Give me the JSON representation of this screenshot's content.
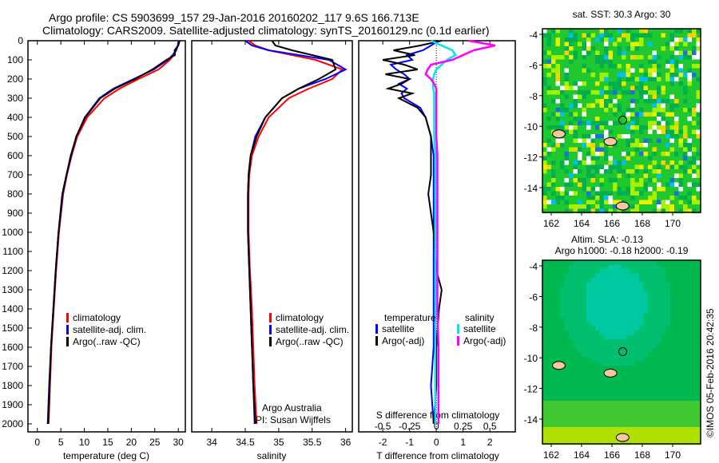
{
  "header": {
    "line1": "Argo profile: CS 5903699_157 29-Jan-2016 20160202_117 9.6S 166.713E",
    "line2": "Climatology: CARS2009. Satellite-adjusted climatology: synTS_20160129.nc (0.1d earlier)"
  },
  "colors": {
    "climatology": "#ff0000",
    "satellite": "#0000ff",
    "argo": "#000000",
    "sal_satellite": "#00e5ee",
    "sal_argo": "#ff00ff"
  },
  "chart_data": [
    {
      "type": "line",
      "name": "temperature",
      "xlabel": "temperature (deg C)",
      "xlim": [
        -2,
        31.5
      ],
      "ylim": [
        0,
        2050
      ],
      "xticks": [
        0,
        5,
        10,
        15,
        20,
        25,
        30
      ],
      "yticks": [
        0,
        100,
        200,
        300,
        400,
        500,
        600,
        700,
        800,
        900,
        1000,
        1100,
        1200,
        1300,
        1400,
        1500,
        1600,
        1700,
        1800,
        1900,
        2000
      ],
      "depth": [
        0,
        25,
        50,
        75,
        100,
        150,
        200,
        250,
        300,
        400,
        500,
        600,
        700,
        800,
        1000,
        1200,
        1400,
        1600,
        1800,
        2000
      ],
      "series": [
        {
          "name": "climatology",
          "color_key": "climatology",
          "values": [
            30,
            29.9,
            29.6,
            29,
            28.2,
            25.8,
            21.5,
            17.5,
            14.3,
            10.6,
            8.5,
            7.3,
            6.3,
            5.5,
            4.6,
            4.0,
            3.5,
            3.0,
            2.7,
            2.4
          ]
        },
        {
          "name": "satellite-adj. clim.",
          "color_key": "satellite",
          "values": [
            30.1,
            29.9,
            29.5,
            28.8,
            27.8,
            24.8,
            20.5,
            16.2,
            13.2,
            10.1,
            8.3,
            7.2,
            6.2,
            5.4,
            4.5,
            3.9,
            3.4,
            2.9,
            2.5,
            2.2
          ]
        },
        {
          "name": "Argo(..raw -QC)",
          "color_key": "argo",
          "values": [
            30.3,
            30.0,
            29.2,
            29.3,
            27.5,
            24.5,
            20.8,
            16.5,
            13.4,
            10.2,
            8.3,
            7.1,
            6.2,
            5.3,
            4.5,
            3.9,
            3.4,
            2.9,
            2.6,
            2.3
          ]
        }
      ],
      "legend": [
        "climatology",
        "satellite-adj. clim.",
        "Argo(..raw -QC)"
      ]
    },
    {
      "type": "line",
      "name": "salinity",
      "xlabel": "salinity",
      "xlim": [
        33.7,
        36.1
      ],
      "ylim": [
        0,
        2050
      ],
      "xticks": [
        34,
        34.5,
        35,
        35.5,
        36
      ],
      "depth": [
        0,
        25,
        50,
        75,
        100,
        150,
        200,
        250,
        300,
        400,
        500,
        600,
        700,
        800,
        1000,
        1200,
        1400,
        1600,
        1800,
        2000
      ],
      "series": [
        {
          "name": "climatology",
          "color_key": "climatology",
          "values": [
            34.55,
            34.65,
            34.85,
            35.2,
            35.55,
            35.95,
            35.8,
            35.45,
            35.15,
            34.85,
            34.7,
            34.6,
            34.56,
            34.55,
            34.55,
            34.57,
            34.6,
            34.62,
            34.64,
            34.67
          ]
        },
        {
          "name": "satellite-adj. clim.",
          "color_key": "satellite",
          "values": [
            34.5,
            34.6,
            34.85,
            35.3,
            35.75,
            36.0,
            35.7,
            35.3,
            35.05,
            34.8,
            34.65,
            34.58,
            34.55,
            34.54,
            34.54,
            34.56,
            34.58,
            34.6,
            34.62,
            34.64
          ]
        },
        {
          "name": "Argo(..raw -QC)",
          "color_key": "argo",
          "values": [
            34.9,
            34.95,
            35.2,
            35.5,
            35.8,
            35.85,
            35.6,
            35.3,
            35.05,
            34.8,
            34.67,
            34.58,
            34.55,
            34.54,
            34.54,
            34.56,
            34.58,
            34.6,
            34.62,
            34.65
          ]
        }
      ],
      "legend": [
        "climatology",
        "satellite-adj. clim.",
        "Argo(..raw -QC)"
      ],
      "annotation": [
        "Argo Australia",
        "PI: Susan Wijffels"
      ]
    },
    {
      "type": "line",
      "name": "difference",
      "xlabel": "T difference from climatology",
      "x2label": "S difference from climatology",
      "xlim": [
        -2.9,
        2.95
      ],
      "x2lim": [
        -0.725,
        0.7375
      ],
      "xticks": [
        -2,
        -1,
        0,
        1,
        2
      ],
      "x2ticks": [
        "-0.5",
        "-0.25",
        "0",
        "0.25",
        "0.5"
      ],
      "depth": [
        0,
        25,
        50,
        75,
        100,
        125,
        150,
        175,
        200,
        225,
        250,
        275,
        300,
        350,
        400,
        500,
        600,
        700,
        800,
        1000,
        1200,
        1300,
        1400,
        1600,
        1800,
        2000
      ],
      "series": [
        {
          "name": "temperature satellite",
          "color_key": "satellite",
          "axis": "T",
          "values": [
            0.1,
            -0.2,
            -0.5,
            -1.1,
            -0.9,
            -1.7,
            -1.5,
            -1.2,
            -1.0,
            -1.4,
            -1.1,
            -1.3,
            -1.2,
            -0.6,
            -0.4,
            -0.2,
            -0.1,
            -0.1,
            -0.1,
            -0.1,
            -0.1,
            -0.1,
            -0.1,
            -0.1,
            -0.2,
            -0.1
          ]
        },
        {
          "name": "temperature Argo(-adj)",
          "color_key": "argo",
          "axis": "T",
          "values": [
            0.2,
            -0.6,
            -1.6,
            -0.8,
            -2.0,
            -1.2,
            -0.7,
            -1.9,
            -1.0,
            -1.3,
            -1.8,
            -0.9,
            -1.4,
            -0.7,
            -0.4,
            -0.2,
            -0.2,
            -0.2,
            -0.3,
            -0.1,
            0.0,
            0.2,
            0.1,
            0.0,
            0.0,
            -0.1
          ]
        },
        {
          "name": "salinity satellite",
          "color_key": "sal_satellite",
          "axis": "S",
          "values": [
            -0.05,
            0.05,
            0.15,
            0.18,
            0.1,
            0.05,
            0.0,
            -0.02,
            -0.03,
            -0.03,
            -0.03,
            -0.02,
            -0.02,
            -0.02,
            -0.02,
            -0.02,
            -0.01,
            -0.01,
            -0.01,
            -0.01,
            -0.01,
            -0.01,
            -0.01,
            -0.01,
            -0.01,
            -0.01
          ]
        },
        {
          "name": "salinity Argo(-adj)",
          "color_key": "sal_argo",
          "axis": "S",
          "values": [
            0.3,
            0.55,
            0.35,
            0.25,
            0.15,
            -0.05,
            -0.08,
            -0.1,
            -0.05,
            -0.02,
            0.0,
            0.0,
            0.0,
            0.0,
            0.0,
            0.0,
            0.01,
            0.01,
            0.01,
            0.01,
            0.01,
            0.01,
            0.01,
            0.02,
            0.02,
            0.02
          ]
        }
      ],
      "legend": {
        "temperature_title": "temperature",
        "salinity_title": "salinity",
        "items": [
          "satellite",
          "Argo(-adj)",
          "satellite",
          "Argo(-adj)"
        ]
      }
    },
    {
      "type": "heatmap",
      "name": "sst-map",
      "title": "sat. SST: 30.3 Argo: 30",
      "xticks": [
        "162",
        "164",
        "166",
        "168",
        "170"
      ],
      "yticks": [
        "-4",
        "-6",
        "-8",
        "-10",
        "-12",
        "-14"
      ],
      "marker": {
        "lon": 166.71,
        "lat": -9.6
      }
    },
    {
      "type": "heatmap",
      "name": "sla-map",
      "title1": "Altim. SLA: -0.13",
      "title2": "Argo h1000: -0.18 h2000: -0.19",
      "xticks": [
        "162",
        "164",
        "166",
        "168",
        "170"
      ],
      "yticks": [
        "-4",
        "-6",
        "-8",
        "-10",
        "-12",
        "-14"
      ],
      "marker": {
        "lon": 166.71,
        "lat": -9.6
      }
    }
  ],
  "footer": {
    "stamp": "©IMOS 05-Feb-2016 20:42:35"
  }
}
